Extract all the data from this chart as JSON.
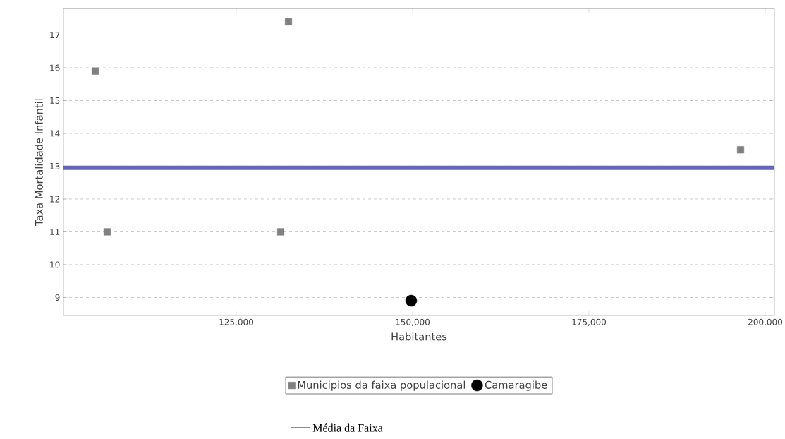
{
  "chart_data": {
    "type": "scatter",
    "xlabel": "Habitantes",
    "ylabel": "Taxa Mortalidade Infantil",
    "xlim": [
      100500,
      201300
    ],
    "ylim": [
      8.45,
      17.8
    ],
    "xticks": [
      {
        "value": 125000,
        "label": "125,000"
      },
      {
        "value": 150000,
        "label": "150,000"
      },
      {
        "value": 175000,
        "label": "175,000"
      },
      {
        "value": 200000,
        "label": "200,000"
      }
    ],
    "yticks": [
      9,
      10,
      11,
      12,
      13,
      14,
      15,
      16,
      17
    ],
    "grid": "y",
    "legend": "bottom",
    "series": [
      {
        "name": "Municipios da faixa populacional",
        "color": "#808080",
        "marker": "square",
        "x": [
          105000,
          106700,
          131300,
          132400,
          196500
        ],
        "values": [
          15.9,
          11.0,
          11.0,
          17.4,
          13.5
        ]
      },
      {
        "name": "Camaragibe",
        "color": "#000000",
        "marker": "circle",
        "x": [
          149800
        ],
        "values": [
          8.9
        ]
      }
    ],
    "ref_lines": [
      {
        "axis": "y",
        "value": 12.95,
        "label": "Média da Faixa",
        "color": "#6464b9"
      }
    ]
  }
}
